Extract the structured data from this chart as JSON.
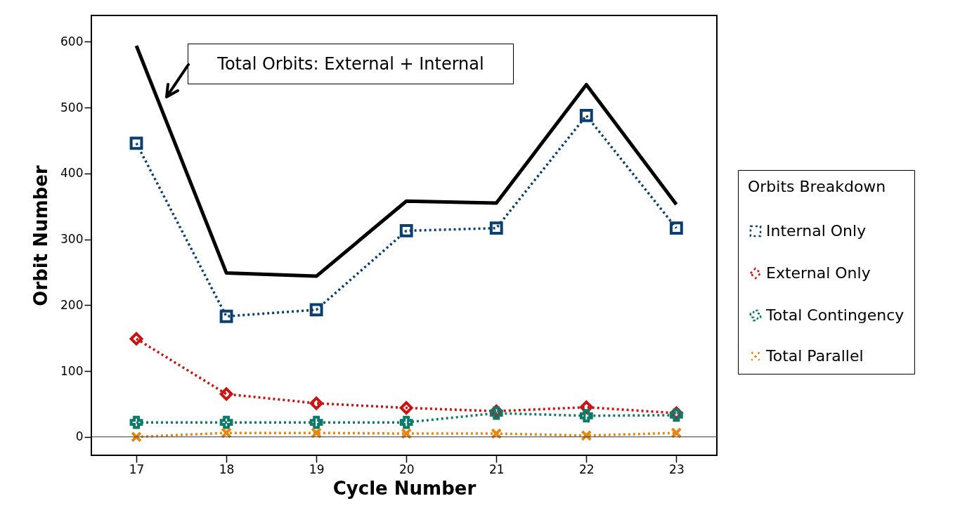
{
  "chart_data": {
    "type": "line",
    "xlabel": "Cycle Number",
    "ylabel": "Orbit Number",
    "legend_title": "Orbits Breakdown",
    "legend": "right",
    "x": [
      17,
      18,
      19,
      20,
      21,
      22,
      23
    ],
    "xlim": [
      16.5,
      23.45
    ],
    "xticks": [
      17,
      18,
      19,
      20,
      21,
      22,
      23
    ],
    "ylim": [
      -28,
      640
    ],
    "yticks": [
      0,
      100,
      200,
      300,
      400,
      500,
      600
    ],
    "grid": false,
    "series": [
      {
        "color": "#000000",
        "line_style": "solid",
        "marker": "none",
        "values": [
          594,
          249,
          244,
          358,
          355,
          535,
          353
        ]
      },
      {
        "name": "Internal Only",
        "color": "#0b3f70",
        "line_style": "dotted",
        "marker": "square",
        "values": [
          446,
          183,
          193,
          313,
          317,
          488,
          317
        ]
      },
      {
        "name": "External Only",
        "color": "#cc1111",
        "line_style": "dotted",
        "marker": "diamond",
        "values": [
          149,
          65,
          51,
          44,
          39,
          45,
          36
        ]
      },
      {
        "name": "Total Contingency",
        "color": "#0e7a6a",
        "line_style": "dotted",
        "marker": "cross",
        "values": [
          22,
          22,
          22,
          22,
          36,
          32,
          33
        ]
      },
      {
        "name": "Total Parallel",
        "color": "#e8870c",
        "line_style": "dotted",
        "marker": "x",
        "values": [
          0,
          6,
          6,
          5,
          5,
          2,
          6
        ]
      }
    ],
    "ref_lines": [
      {
        "axis": "y",
        "value": 0,
        "color": "#333355"
      }
    ],
    "annotations": [
      "Total Orbits: External + Internal"
    ]
  }
}
